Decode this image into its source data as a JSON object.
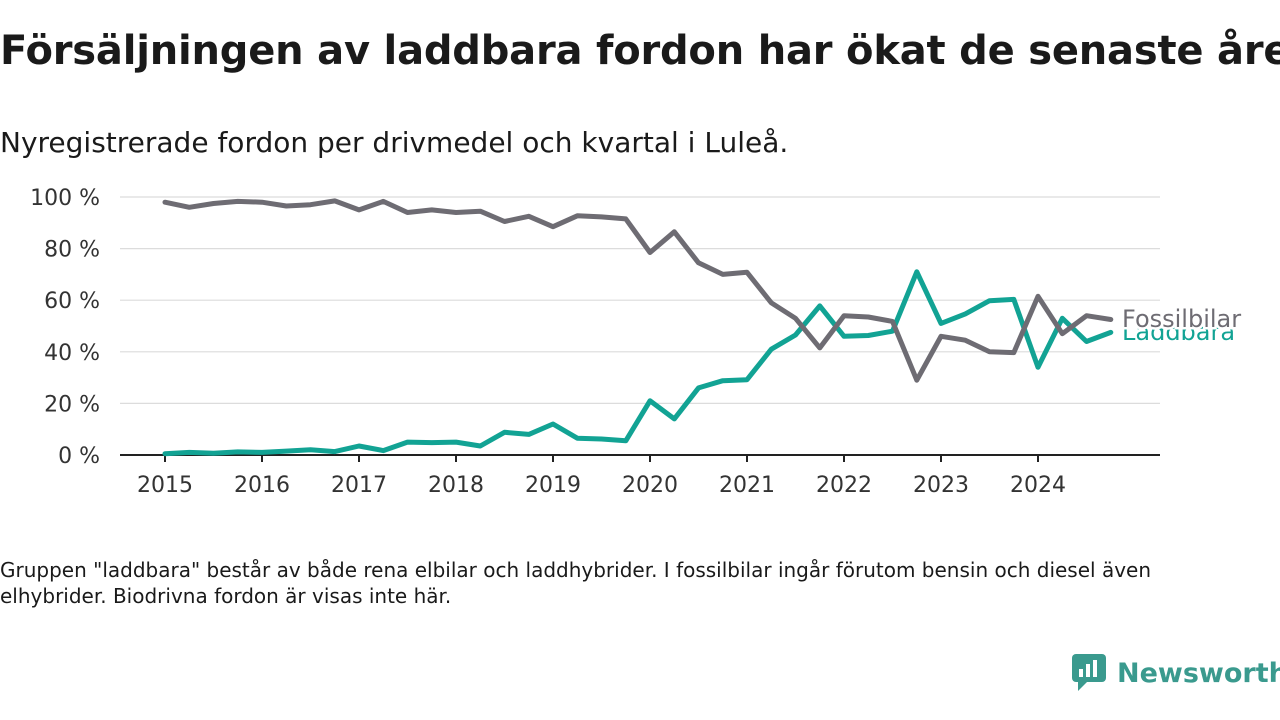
{
  "title": "Försäljningen av laddbara fordon har ökat de senaste åren",
  "subtitle": "Nyregistrerade fordon per drivmedel och kvartal i Luleå.",
  "note": "Gruppen \"laddbara\" består av både rena elbilar och laddhybrider. I fossilbilar ingår förutom bensin och diesel även elhybrider. Biodrivna fordon är visas inte här.",
  "brand": {
    "name": "Newsworthy",
    "icon": "newsworthy-logo-icon",
    "color": "#3a9a8e"
  },
  "chart_data": {
    "type": "line",
    "title": "",
    "xlabel": "",
    "ylabel": "",
    "ylim": [
      0,
      100
    ],
    "xlim": [
      2015,
      2024.75
    ],
    "y_ticks": [
      0,
      20,
      40,
      60,
      80,
      100
    ],
    "y_tick_labels": [
      "0 %",
      "20 %",
      "40 %",
      "60 %",
      "80 %",
      "100 %"
    ],
    "x_ticks": [
      2015,
      2016,
      2017,
      2018,
      2019,
      2020,
      2021,
      2022,
      2023,
      2024
    ],
    "x_tick_labels": [
      "2015",
      "2016",
      "2017",
      "2018",
      "2019",
      "2020",
      "2021",
      "2022",
      "2023",
      "2024"
    ],
    "grid": "horizontal",
    "legend": "labels at line ends",
    "x": [
      2015,
      2015.25,
      2015.5,
      2015.75,
      2016,
      2016.25,
      2016.5,
      2016.75,
      2017,
      2017.25,
      2017.5,
      2017.75,
      2018,
      2018.25,
      2018.5,
      2018.75,
      2019,
      2019.25,
      2019.5,
      2019.75,
      2020,
      2020.25,
      2020.5,
      2020.75,
      2021,
      2021.25,
      2021.5,
      2021.75,
      2022,
      2022.25,
      2022.5,
      2022.75,
      2023,
      2023.25,
      2023.5,
      2023.75,
      2024,
      2024.25,
      2024.5,
      2024.75
    ],
    "series": [
      {
        "name": "Fossilbilar",
        "color": "#6e6c73",
        "values": [
          98,
          96,
          97.5,
          98.3,
          98,
          96.5,
          97,
          98.5,
          95,
          98.3,
          94,
          95,
          94,
          94.5,
          90.5,
          92.5,
          88.5,
          92.7,
          92.3,
          91.5,
          78.5,
          86.5,
          74.5,
          70,
          70.8,
          59,
          53,
          41.5,
          54,
          53.5,
          51.8,
          29,
          46,
          44.5,
          40,
          39.7,
          61.5,
          47,
          54,
          52.5
        ]
      },
      {
        "name": "Laddbara",
        "color": "#12a394",
        "values": [
          0.5,
          1,
          0.7,
          1.2,
          1,
          1.5,
          2,
          1.3,
          3.5,
          1.7,
          5,
          4.8,
          5,
          3.5,
          8.8,
          8,
          12,
          6.5,
          6.2,
          5.5,
          21,
          14,
          26,
          28.8,
          29.2,
          41,
          46.5,
          57.8,
          46,
          46.3,
          48,
          71,
          51,
          54.7,
          59.8,
          60.3,
          34,
          53,
          44,
          47.5
        ]
      }
    ]
  }
}
